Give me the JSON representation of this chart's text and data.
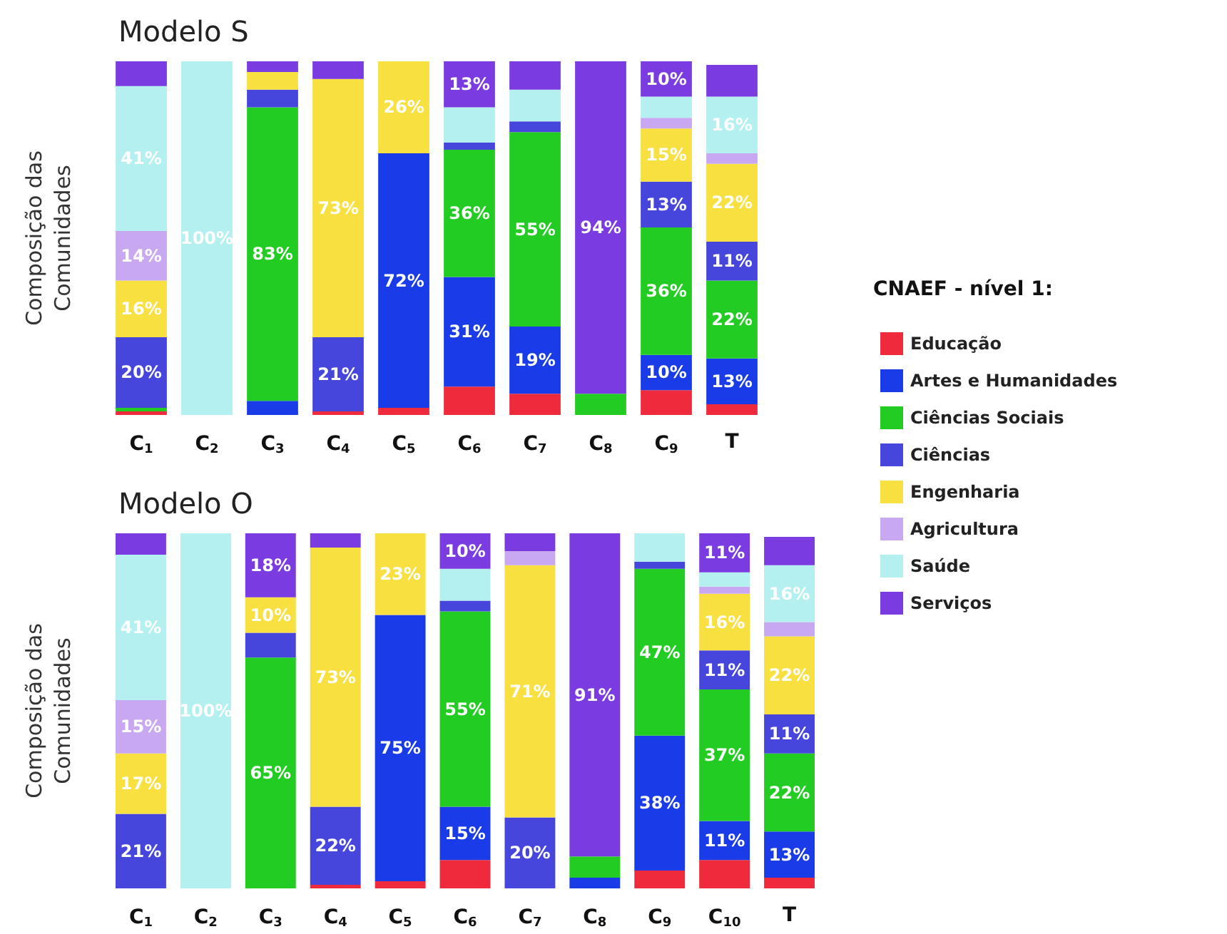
{
  "chart_data": [
    {
      "type": "bar",
      "title": "Modelo S",
      "ylabel": "Composição das\nComunidades",
      "legend_title": "CNAEF - nível 1:",
      "stacked": true,
      "legend": "right",
      "grid": false,
      "tick_labels": "x",
      "ylim": [
        0,
        100
      ],
      "categories": [
        "C$_{1}$",
        "C$_{2}$",
        "C$_{3}$",
        "C$_{4}$",
        "C$_{5}$",
        "C$_{6}$",
        "C$_{7}$",
        "C$_{8}$",
        "C$_{9}$",
        "T"
      ],
      "series": [
        {
          "name": "Educação",
          "color": "#ee2a3c",
          "values": [
            1,
            0,
            0,
            1,
            2,
            8,
            6,
            0,
            7,
            3
          ],
          "value_labels": [
            null,
            null,
            null,
            null,
            null,
            null,
            null,
            null,
            null,
            null
          ]
        },
        {
          "name": "Artes e Humanidades",
          "color": "#1a3be8",
          "values": [
            0,
            0,
            4,
            0,
            72,
            31,
            19,
            0,
            10,
            13
          ],
          "value_labels": [
            null,
            null,
            null,
            null,
            "72%",
            "31%",
            "19%",
            null,
            "10%",
            "13%"
          ]
        },
        {
          "name": "Ciências Sociais",
          "color": "#22cc22",
          "values": [
            1,
            0,
            83,
            0,
            0,
            36,
            55,
            6,
            36,
            22
          ],
          "value_labels": [
            null,
            null,
            "83%",
            null,
            null,
            "36%",
            "55%",
            null,
            "36%",
            "22%"
          ]
        },
        {
          "name": "Ciências",
          "color": "#4646dd",
          "values": [
            20,
            0,
            5,
            21,
            0,
            2,
            3,
            0,
            13,
            11
          ],
          "value_labels": [
            "20%",
            null,
            null,
            "21%",
            null,
            null,
            null,
            null,
            "13%",
            "11%"
          ]
        },
        {
          "name": "Engenharia",
          "color": "#f8e040",
          "values": [
            16,
            0,
            5,
            73,
            26,
            0,
            0,
            0,
            15,
            22
          ],
          "value_labels": [
            "16%",
            null,
            null,
            "73%",
            "26%",
            null,
            null,
            null,
            "15%",
            "22%"
          ]
        },
        {
          "name": "Agricultura",
          "color": "#c8a8f0",
          "values": [
            14,
            0,
            0,
            0,
            0,
            0,
            0,
            0,
            3,
            3
          ],
          "value_labels": [
            "14%",
            null,
            null,
            null,
            null,
            null,
            null,
            null,
            null,
            null
          ]
        },
        {
          "name": "Saúde",
          "color": "#b4f0f0",
          "values": [
            41,
            100,
            0,
            0,
            0,
            10,
            9,
            0,
            6,
            16
          ],
          "value_labels": [
            "41%",
            "100%",
            null,
            null,
            null,
            null,
            null,
            null,
            null,
            "16%"
          ]
        },
        {
          "name": "Serviços",
          "color": "#7a3ce0",
          "values": [
            7,
            0,
            3,
            5,
            0,
            13,
            8,
            94,
            10,
            9
          ],
          "value_labels": [
            null,
            null,
            null,
            null,
            null,
            "13%",
            null,
            "94%",
            "10%",
            null
          ]
        }
      ]
    },
    {
      "type": "bar",
      "title": "Modelo O",
      "ylabel": "Composição das\nComunidades",
      "stacked": true,
      "legend": false,
      "grid": false,
      "tick_labels": "x",
      "ylim": [
        0,
        100
      ],
      "categories": [
        "C$_{1}$",
        "C$_{2}$",
        "C$_{3}$",
        "C$_{4}$",
        "C$_{5}$",
        "C$_{6}$",
        "C$_{7}$",
        "C$_{8}$",
        "C$_{9}$",
        "C$_{10}$",
        "T"
      ],
      "series": [
        {
          "color": "#ee2a3c",
          "values": [
            0,
            0,
            0,
            1,
            2,
            8,
            0,
            0,
            5,
            8,
            3
          ],
          "value_labels": [
            null,
            null,
            null,
            null,
            null,
            null,
            null,
            null,
            null,
            null,
            null
          ]
        },
        {
          "color": "#1a3be8",
          "values": [
            0,
            0,
            0,
            0,
            75,
            15,
            0,
            3,
            38,
            11,
            13
          ],
          "value_labels": [
            null,
            null,
            null,
            null,
            "75%",
            "15%",
            null,
            null,
            "38%",
            "11%",
            "13%"
          ]
        },
        {
          "color": "#22cc22",
          "values": [
            0,
            0,
            65,
            0,
            0,
            55,
            0,
            6,
            47,
            37,
            22
          ],
          "value_labels": [
            null,
            null,
            "65%",
            null,
            null,
            "55%",
            null,
            null,
            "47%",
            "37%",
            "22%"
          ]
        },
        {
          "color": "#4646dd",
          "values": [
            21,
            0,
            7,
            22,
            0,
            3,
            20,
            0,
            2,
            11,
            11
          ],
          "value_labels": [
            "21%",
            null,
            null,
            "22%",
            null,
            null,
            "20%",
            null,
            null,
            "11%",
            "11%"
          ]
        },
        {
          "color": "#f8e040",
          "values": [
            17,
            0,
            10,
            73,
            23,
            0,
            71,
            0,
            0,
            16,
            22
          ],
          "value_labels": [
            "17%",
            null,
            "10%",
            "73%",
            "23%",
            null,
            "71%",
            null,
            null,
            "16%",
            "22%"
          ]
        },
        {
          "color": "#c8a8f0",
          "values": [
            15,
            0,
            0,
            0,
            0,
            0,
            4,
            0,
            0,
            2,
            4
          ],
          "value_labels": [
            "15%",
            null,
            null,
            null,
            null,
            null,
            null,
            null,
            null,
            null,
            null
          ]
        },
        {
          "color": "#b4f0f0",
          "values": [
            41,
            100,
            0,
            0,
            0,
            9,
            0,
            0,
            8,
            4,
            16
          ],
          "value_labels": [
            "41%",
            "100%",
            null,
            null,
            null,
            null,
            null,
            null,
            null,
            null,
            "16%"
          ]
        },
        {
          "color": "#7a3ce0",
          "values": [
            6,
            0,
            18,
            4,
            0,
            10,
            5,
            91,
            0,
            11,
            8
          ],
          "value_labels": [
            null,
            null,
            "18%",
            null,
            null,
            "10%",
            null,
            "91%",
            null,
            "11%",
            null
          ]
        }
      ]
    }
  ]
}
